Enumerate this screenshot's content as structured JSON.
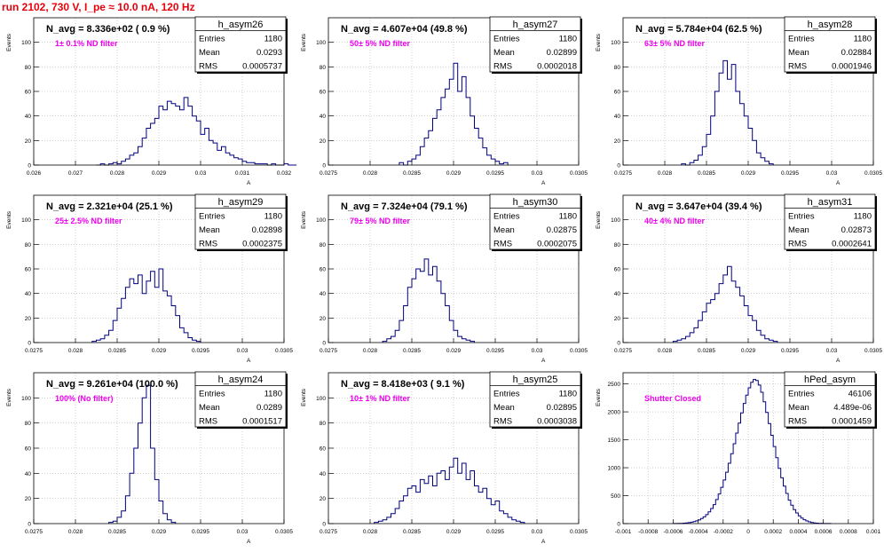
{
  "run_title": "run 2102,   730 V, I_pe ≈ 10.0 nA, 120 Hz",
  "colors": {
    "title": "#e8000b",
    "note": "#ee00ee",
    "histogram": "#00007f",
    "grid": "#b4b4b4"
  },
  "chart_data": [
    {
      "type": "bar",
      "style": "step-histogram",
      "stats_box": {
        "name": "h_asym26",
        "rows": [
          [
            "Entries",
            "1180"
          ],
          [
            "Mean",
            "0.0293"
          ],
          [
            "RMS",
            "0.0005737"
          ]
        ]
      },
      "n_avg_label": "N_avg = 8.336e+02 ( 0.9 %)",
      "note": "1± 0.1% ND filter",
      "ylabel": "Events",
      "xlabel": "A",
      "xlim": [
        0.026,
        0.032
      ],
      "ylim": [
        0,
        120
      ],
      "grid": true,
      "xticks": [
        0.026,
        0.027,
        0.028,
        0.029,
        0.03,
        0.031,
        0.032
      ],
      "xtick_labels": [
        "0.026",
        "0.027",
        "0.028",
        "0.029",
        "0.03",
        "0.031",
        "0.032"
      ],
      "yticks": [
        0,
        20,
        40,
        60,
        80,
        100
      ],
      "bin_start": 0.0275,
      "bin_width": 0.0001,
      "counts": [
        0,
        1,
        0,
        1,
        2,
        1,
        3,
        5,
        8,
        10,
        15,
        22,
        30,
        34,
        38,
        48,
        45,
        52,
        50,
        48,
        45,
        55,
        48,
        40,
        36,
        25,
        30,
        20,
        18,
        12,
        15,
        10,
        8,
        6,
        5,
        3,
        2,
        2,
        1,
        1,
        1,
        0,
        1,
        0,
        0,
        1,
        0,
        0
      ]
    },
    {
      "type": "bar",
      "style": "step-histogram",
      "stats_box": {
        "name": "h_asym27",
        "rows": [
          [
            "Entries",
            "1180"
          ],
          [
            "Mean",
            "0.02899"
          ],
          [
            "RMS",
            "0.0002018"
          ]
        ]
      },
      "n_avg_label": "N_avg = 4.607e+04 (49.8 %)",
      "note": "50± 5% ND filter",
      "ylabel": "Events",
      "xlabel": "A",
      "xlim": [
        0.0275,
        0.0305
      ],
      "ylim": [
        0,
        120
      ],
      "grid": true,
      "xticks": [
        0.0275,
        0.028,
        0.0285,
        0.029,
        0.0295,
        0.03,
        0.0305
      ],
      "xtick_labels": [
        "0.0275",
        "0.028",
        "0.0285",
        "0.029",
        "0.0295",
        "0.03",
        "0.0305"
      ],
      "yticks": [
        0,
        20,
        40,
        60,
        80,
        100
      ],
      "bin_start": 0.02835,
      "bin_width": 5e-05,
      "counts": [
        2,
        0,
        3,
        5,
        8,
        15,
        22,
        28,
        38,
        45,
        55,
        62,
        70,
        83,
        60,
        72,
        55,
        40,
        30,
        22,
        14,
        8,
        5,
        3,
        1,
        2
      ]
    },
    {
      "type": "bar",
      "style": "step-histogram",
      "stats_box": {
        "name": "h_asym28",
        "rows": [
          [
            "Entries",
            "1180"
          ],
          [
            "Mean",
            "0.02884"
          ],
          [
            "RMS",
            "0.0001946"
          ]
        ]
      },
      "n_avg_label": "N_avg = 5.784e+04 (62.5 %)",
      "note": "63± 5% ND filter",
      "ylabel": "Events",
      "xlabel": "A",
      "xlim": [
        0.0275,
        0.0305
      ],
      "ylim": [
        0,
        120
      ],
      "grid": true,
      "xticks": [
        0.0275,
        0.028,
        0.0285,
        0.029,
        0.0295,
        0.03,
        0.0305
      ],
      "xtick_labels": [
        "0.0275",
        "0.028",
        "0.0285",
        "0.029",
        "0.0295",
        "0.03",
        "0.0305"
      ],
      "yticks": [
        0,
        20,
        40,
        60,
        80,
        100
      ],
      "bin_start": 0.0282,
      "bin_width": 5e-05,
      "counts": [
        1,
        0,
        2,
        4,
        8,
        15,
        25,
        40,
        60,
        75,
        85,
        70,
        82,
        60,
        50,
        40,
        30,
        20,
        10,
        6,
        3,
        1
      ]
    },
    {
      "type": "bar",
      "style": "step-histogram",
      "stats_box": {
        "name": "h_asym29",
        "rows": [
          [
            "Entries",
            "1180"
          ],
          [
            "Mean",
            "0.02898"
          ],
          [
            "RMS",
            "0.0002375"
          ]
        ]
      },
      "n_avg_label": "N_avg = 2.321e+04 (25.1 %)",
      "note": "25± 2.5% ND filter",
      "ylabel": "Events",
      "xlabel": "A",
      "xlim": [
        0.0275,
        0.0305
      ],
      "ylim": [
        0,
        120
      ],
      "grid": true,
      "xticks": [
        0.0275,
        0.028,
        0.0285,
        0.029,
        0.0295,
        0.03,
        0.0305
      ],
      "xtick_labels": [
        "0.0275",
        "0.028",
        "0.0285",
        "0.029",
        "0.0295",
        "0.03",
        "0.0305"
      ],
      "yticks": [
        0,
        20,
        40,
        60,
        80,
        100
      ],
      "bin_start": 0.0282,
      "bin_width": 5e-05,
      "counts": [
        1,
        2,
        3,
        6,
        10,
        18,
        28,
        36,
        45,
        52,
        48,
        55,
        40,
        50,
        58,
        45,
        60,
        42,
        38,
        30,
        22,
        12,
        8,
        4,
        2,
        1
      ]
    },
    {
      "type": "bar",
      "style": "step-histogram",
      "stats_box": {
        "name": "h_asym30",
        "rows": [
          [
            "Entries",
            "1180"
          ],
          [
            "Mean",
            "0.02875"
          ],
          [
            "RMS",
            "0.0002075"
          ]
        ]
      },
      "n_avg_label": "N_avg = 7.324e+04 (79.1 %)",
      "note": "79± 5% ND filter",
      "ylabel": "Events",
      "xlabel": "A",
      "xlim": [
        0.0275,
        0.0305
      ],
      "ylim": [
        0,
        120
      ],
      "grid": true,
      "xticks": [
        0.0275,
        0.028,
        0.0285,
        0.029,
        0.0295,
        0.03,
        0.0305
      ],
      "xtick_labels": [
        "0.0275",
        "0.028",
        "0.0285",
        "0.029",
        "0.0295",
        "0.03",
        "0.0305"
      ],
      "yticks": [
        0,
        20,
        40,
        60,
        80,
        100
      ],
      "bin_start": 0.02815,
      "bin_width": 5e-05,
      "counts": [
        1,
        3,
        5,
        10,
        18,
        30,
        45,
        52,
        60,
        58,
        68,
        55,
        62,
        50,
        40,
        30,
        18,
        10,
        5,
        3,
        2,
        1
      ]
    },
    {
      "type": "bar",
      "style": "step-histogram",
      "stats_box": {
        "name": "h_asym31",
        "rows": [
          [
            "Entries",
            "1180"
          ],
          [
            "Mean",
            "0.02873"
          ],
          [
            "RMS",
            "0.0002641"
          ]
        ]
      },
      "n_avg_label": "N_avg = 3.647e+04 (39.4 %)",
      "note": "40± 4% ND filter",
      "ylabel": "Events",
      "xlabel": "A",
      "xlim": [
        0.0275,
        0.0305
      ],
      "ylim": [
        0,
        120
      ],
      "grid": true,
      "xticks": [
        0.0275,
        0.028,
        0.0285,
        0.029,
        0.0295,
        0.03,
        0.0305
      ],
      "xtick_labels": [
        "0.0275",
        "0.028",
        "0.0285",
        "0.029",
        "0.0295",
        "0.03",
        "0.0305"
      ],
      "yticks": [
        0,
        20,
        40,
        60,
        80,
        100
      ],
      "bin_start": 0.0281,
      "bin_width": 5e-05,
      "counts": [
        1,
        2,
        3,
        5,
        8,
        12,
        18,
        25,
        32,
        35,
        40,
        48,
        55,
        62,
        50,
        45,
        38,
        30,
        22,
        18,
        10,
        6,
        3,
        2,
        1
      ]
    },
    {
      "type": "bar",
      "style": "step-histogram",
      "stats_box": {
        "name": "h_asym24",
        "rows": [
          [
            "Entries",
            "1180"
          ],
          [
            "Mean",
            "0.0289"
          ],
          [
            "RMS",
            "0.0001517"
          ]
        ]
      },
      "n_avg_label": "N_avg = 9.261e+04 (100.0 %)",
      "note": "100% (No filter)",
      "ylabel": "Events",
      "xlabel": "A",
      "xlim": [
        0.0275,
        0.0305
      ],
      "ylim": [
        0,
        120
      ],
      "grid": true,
      "xticks": [
        0.0275,
        0.028,
        0.0285,
        0.029,
        0.0295,
        0.03,
        0.0305
      ],
      "xtick_labels": [
        "0.0275",
        "0.028",
        "0.0285",
        "0.029",
        "0.0295",
        "0.03",
        "0.0305"
      ],
      "yticks": [
        0,
        20,
        40,
        60,
        80,
        100
      ],
      "bin_start": 0.0284,
      "bin_width": 5e-05,
      "counts": [
        1,
        2,
        5,
        10,
        22,
        40,
        60,
        80,
        100,
        110,
        60,
        35,
        18,
        8,
        3,
        1
      ]
    },
    {
      "type": "bar",
      "style": "step-histogram",
      "stats_box": {
        "name": "h_asym25",
        "rows": [
          [
            "Entries",
            "1180"
          ],
          [
            "Mean",
            "0.02895"
          ],
          [
            "RMS",
            "0.0003038"
          ]
        ]
      },
      "n_avg_label": "N_avg = 8.418e+03 ( 9.1 %)",
      "note": "10± 1% ND filter",
      "ylabel": "Events",
      "xlabel": "A",
      "xlim": [
        0.0275,
        0.0305
      ],
      "ylim": [
        0,
        120
      ],
      "grid": true,
      "xticks": [
        0.0275,
        0.028,
        0.0285,
        0.029,
        0.0295,
        0.03,
        0.0305
      ],
      "xtick_labels": [
        "0.0275",
        "0.028",
        "0.0285",
        "0.029",
        "0.0295",
        "0.03",
        "0.0305"
      ],
      "yticks": [
        0,
        20,
        40,
        60,
        80,
        100
      ],
      "bin_start": 0.02805,
      "bin_width": 5e-05,
      "counts": [
        1,
        2,
        3,
        5,
        8,
        12,
        18,
        22,
        28,
        30,
        25,
        35,
        32,
        38,
        30,
        40,
        42,
        35,
        45,
        52,
        40,
        48,
        35,
        42,
        30,
        25,
        28,
        20,
        15,
        18,
        10,
        8,
        5,
        3,
        2,
        1
      ]
    },
    {
      "type": "bar",
      "style": "step-histogram",
      "stats_box": {
        "name": "hPed_asym",
        "rows": [
          [
            "Entries",
            "46106"
          ],
          [
            "Mean",
            "4.489e-06"
          ],
          [
            "RMS",
            "0.0001459"
          ]
        ]
      },
      "n_avg_label": "",
      "note": "Shutter Closed",
      "ylabel": "Events",
      "xlabel": "",
      "xlim": [
        -0.001,
        0.001
      ],
      "ylim": [
        0,
        2700
      ],
      "grid": true,
      "xticks": [
        -0.001,
        -0.0008,
        -0.0006,
        -0.0004,
        -0.0002,
        0,
        0.0002,
        0.0004,
        0.0006,
        0.0008,
        0.001
      ],
      "xtick_labels": [
        "-0.001",
        "-0.0008",
        "-0.0006",
        "-0.0004",
        "-0.0002",
        "0",
        "0.0002",
        "0.0004",
        "0.0006",
        "0.0008",
        "0.001"
      ],
      "yticks": [
        0,
        500,
        1000,
        1500,
        2000,
        2500
      ],
      "bin_start": -0.0006,
      "bin_width": 2e-05,
      "counts": [
        1,
        2,
        3,
        5,
        8,
        12,
        18,
        25,
        35,
        50,
        65,
        90,
        120,
        160,
        210,
        270,
        340,
        430,
        530,
        650,
        780,
        920,
        1080,
        1250,
        1430,
        1620,
        1800,
        1980,
        2150,
        2300,
        2430,
        2530,
        2580,
        2560,
        2480,
        2350,
        2180,
        1990,
        1790,
        1580,
        1380,
        1180,
        990,
        820,
        670,
        540,
        420,
        330,
        250,
        190,
        140,
        100,
        70,
        48,
        32,
        21,
        13,
        8,
        5,
        3,
        2,
        1,
        1
      ]
    }
  ]
}
